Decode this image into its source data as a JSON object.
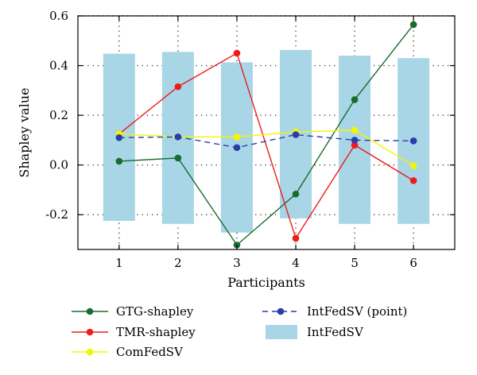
{
  "chart_data": {
    "type": "line",
    "xlabel": "Participants",
    "ylabel": "Shapley value",
    "x": [
      1,
      2,
      3,
      4,
      5,
      6
    ],
    "x_ticks": [
      "1",
      "2",
      "3",
      "4",
      "5",
      "6"
    ],
    "y_ticks": [
      "-0.2",
      "0.0",
      "0.2",
      "0.4",
      "0.6"
    ],
    "xlim": [
      0.3,
      6.7
    ],
    "ylim": [
      -0.34,
      0.6
    ],
    "grid": "dotted",
    "series": [
      {
        "name": "GTG-shapley",
        "kind": "line-marker",
        "color": "#1a6b2e",
        "values": [
          0.015,
          0.028,
          -0.322,
          -0.117,
          0.263,
          0.565
        ]
      },
      {
        "name": "TMR-shapley",
        "kind": "line-marker",
        "color": "#ee1c1c",
        "values": [
          0.125,
          0.315,
          0.45,
          -0.295,
          0.08,
          -0.063
        ]
      },
      {
        "name": "ComFedSV",
        "kind": "line-marker",
        "color": "#f5f500",
        "values": [
          0.125,
          0.113,
          0.113,
          0.133,
          0.14,
          -0.003
        ]
      },
      {
        "name": "IntFedSV (point)",
        "kind": "dashed-marker",
        "color": "#2b3ea8",
        "values": [
          0.11,
          0.113,
          0.07,
          0.122,
          0.1,
          0.097
        ]
      },
      {
        "name": "IntFedSV",
        "kind": "interval-bar",
        "color": "#a8d6e6",
        "lower": [
          -0.225,
          -0.237,
          -0.272,
          -0.215,
          -0.237,
          -0.237
        ],
        "upper": [
          0.448,
          0.455,
          0.413,
          0.463,
          0.44,
          0.43
        ]
      }
    ],
    "legend": {
      "placement": "bottom",
      "entries": [
        "GTG-shapley",
        "TMR-shapley",
        "ComFedSV",
        "IntFedSV (point)",
        "IntFedSV"
      ]
    }
  }
}
